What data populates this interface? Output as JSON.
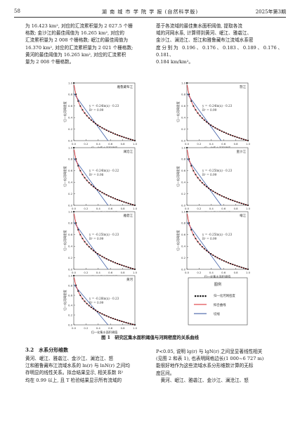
{
  "header": {
    "page_number": "58",
    "journal_title": "湖 南 城 市 学 院 学 报 (自然科学版)",
    "issue": "2025年第3期"
  },
  "left_top_paragraph": [
    "为 16.423 km², 对应的汇流累积量为 2 027.5 个栅",
    "格数; 金沙江的最佳阈值为 16.265 km², 对应的",
    "汇流累积量为 2 008 个栅格数; 岷江的最佳阈值为",
    "16.370 km², 对应的汇流累积量为 2 021 个栅格数;",
    "黄河的最佳阈值为 16.265 km², 对应的汇流累积",
    "量为 2 008 个栅格数。"
  ],
  "right_top_paragraph": [
    "基于各流域的最佳集水面积阈值, 提取各流",
    "域的河网水系, 计算得到黄河、岷江、雅砻江、",
    "金沙江、澜沧江、怒江和雅鲁藏布江流域水系密",
    "度分别为 0.196、0.176、0.183、0.189、0.176、0.181、",
    "0.184 km/km²。"
  ],
  "figure": {
    "caption": "图 1　研究区集水面积阈值与河网密度的关系曲线",
    "ylabel": "归一化河网密度",
    "xlabel": "归一化集水面积阈值",
    "legend": {
      "title": "图例",
      "items": [
        "归一化河网密度",
        "拟合曲线",
        "切线"
      ]
    }
  },
  "chart_data": [
    {
      "type": "line",
      "title": "雅鲁藏布江",
      "equation": "y = -0.24ln(x) - 0.23",
      "r2": "R² = 0.99",
      "x_ticks": [
        "0.0",
        "0.2",
        "0.4",
        "0.6",
        "0.8",
        "1.0"
      ],
      "y_ticks": [
        "0.0",
        "0.2",
        "0.4",
        "0.6",
        "0.8",
        "1.0"
      ],
      "series": [
        {
          "name": "归一化河网密度",
          "x": [
            0.0,
            0.02,
            0.05,
            0.1,
            0.15,
            0.2,
            0.3,
            0.4,
            0.5,
            0.6,
            0.7,
            0.8,
            0.9,
            1.0
          ],
          "y": [
            1.0,
            0.82,
            0.62,
            0.48,
            0.38,
            0.31,
            0.21,
            0.15,
            0.1,
            0.07,
            0.05,
            0.03,
            0.01,
            0.0
          ]
        }
      ]
    },
    {
      "type": "line",
      "title": "怒江",
      "equation": "y = -0.24ln(x) - 0.23",
      "r2": "R² = 0.99",
      "x_ticks": [
        "0.0",
        "0.2",
        "0.4",
        "0.6",
        "0.8",
        "1.0"
      ],
      "y_ticks": [
        "0.0",
        "0.2",
        "0.4",
        "0.6",
        "0.8",
        "1.0"
      ],
      "series": [
        {
          "name": "归一化河网密度",
          "x": [
            0.0,
            0.02,
            0.05,
            0.1,
            0.15,
            0.2,
            0.3,
            0.4,
            0.5,
            0.6,
            0.7,
            0.8,
            0.9,
            1.0
          ],
          "y": [
            1.0,
            0.82,
            0.62,
            0.48,
            0.38,
            0.31,
            0.21,
            0.15,
            0.1,
            0.07,
            0.05,
            0.03,
            0.01,
            0.0
          ]
        }
      ]
    },
    {
      "type": "line",
      "title": "澜沧江",
      "equation": "y = -0.24ln(x) - 0.22",
      "r2": "R² = 0.98",
      "x_ticks": [
        "0.0",
        "0.2",
        "0.4",
        "0.6",
        "0.8",
        "1.0"
      ],
      "y_ticks": [
        "0.0",
        "0.2",
        "0.4",
        "0.6",
        "0.8",
        "1.0"
      ],
      "series": [
        {
          "name": "归一化河网密度",
          "x": [
            0.0,
            0.02,
            0.05,
            0.1,
            0.15,
            0.2,
            0.3,
            0.4,
            0.5,
            0.6,
            0.7,
            0.8,
            0.9,
            1.0
          ],
          "y": [
            1.0,
            0.84,
            0.65,
            0.5,
            0.4,
            0.33,
            0.22,
            0.15,
            0.1,
            0.07,
            0.05,
            0.03,
            0.01,
            0.0
          ]
        }
      ]
    },
    {
      "type": "line",
      "title": "金沙江",
      "equation": "y = -0.25ln(x) - 0.23",
      "r2": "R² = 0.99",
      "x_ticks": [
        "0.0",
        "0.2",
        "0.4",
        "0.6",
        "0.8",
        "1.0"
      ],
      "y_ticks": [
        "0.0",
        "0.2",
        "0.4",
        "0.6",
        "0.8",
        "1.0"
      ],
      "series": [
        {
          "name": "归一化河网密度",
          "x": [
            0.0,
            0.02,
            0.05,
            0.1,
            0.15,
            0.2,
            0.3,
            0.4,
            0.5,
            0.6,
            0.7,
            0.8,
            0.9,
            1.0
          ],
          "y": [
            1.0,
            0.83,
            0.63,
            0.49,
            0.39,
            0.32,
            0.22,
            0.15,
            0.1,
            0.07,
            0.05,
            0.03,
            0.01,
            0.0
          ]
        }
      ]
    },
    {
      "type": "line",
      "title": "雅砻江",
      "equation": "y = -0.25ln(x) - 0.23",
      "r2": "R² = 0.99",
      "x_ticks": [
        "0.0",
        "0.2",
        "0.4",
        "0.6",
        "0.8",
        "1.0"
      ],
      "y_ticks": [
        "0.0",
        "0.2",
        "0.4",
        "0.6",
        "0.8",
        "1.0"
      ],
      "series": [
        {
          "name": "归一化河网密度",
          "x": [
            0.0,
            0.02,
            0.05,
            0.1,
            0.15,
            0.2,
            0.3,
            0.4,
            0.5,
            0.6,
            0.7,
            0.8,
            0.9,
            1.0
          ],
          "y": [
            1.0,
            0.83,
            0.63,
            0.49,
            0.39,
            0.32,
            0.22,
            0.15,
            0.1,
            0.07,
            0.05,
            0.03,
            0.01,
            0.0
          ]
        }
      ]
    },
    {
      "type": "line",
      "title": "岷江",
      "equation": "y = -0.25ln(x) - 0.23",
      "r2": "R² = 0.99",
      "x_ticks": [
        "0.0",
        "0.2",
        "0.4",
        "0.6",
        "0.8",
        "1.0"
      ],
      "y_ticks": [
        "0.0",
        "0.2",
        "0.4",
        "0.6",
        "0.8",
        "1.0"
      ],
      "series": [
        {
          "name": "归一化河网密度",
          "x": [
            0.0,
            0.02,
            0.05,
            0.1,
            0.15,
            0.2,
            0.3,
            0.4,
            0.5,
            0.6,
            0.7,
            0.8,
            0.9,
            1.0
          ],
          "y": [
            1.0,
            0.83,
            0.63,
            0.49,
            0.39,
            0.32,
            0.22,
            0.15,
            0.1,
            0.07,
            0.05,
            0.03,
            0.01,
            0.0
          ]
        }
      ]
    },
    {
      "type": "line",
      "title": "黄河",
      "equation": "y = -0.28ln(x) - 0.23",
      "r2": "R² = 0.99",
      "x_ticks": [
        "0.0",
        "0.2",
        "0.4",
        "0.6",
        "0.8",
        "1.0"
      ],
      "y_ticks": [
        "0.0",
        "0.2",
        "0.4",
        "0.6",
        "0.8",
        "1.0"
      ],
      "series": [
        {
          "name": "归一化河网密度",
          "x": [
            0.0,
            0.02,
            0.05,
            0.1,
            0.15,
            0.2,
            0.3,
            0.4,
            0.5,
            0.6,
            0.7,
            0.8,
            0.9,
            1.0
          ],
          "y": [
            1.0,
            0.86,
            0.66,
            0.51,
            0.41,
            0.34,
            0.23,
            0.16,
            0.11,
            0.07,
            0.05,
            0.03,
            0.01,
            0.0
          ]
        }
      ]
    }
  ],
  "section_heading": "3.2　水系分形维数",
  "left_bottom_paragraph": [
    "黄河、岷江、雅砻江、金沙江、澜沧江、怒",
    "江和雅鲁藏布江流域水系的 ln(r) 与 lnN(r) 之间均",
    "存明显的线性关系。拟合结果显示, 相关系数 R²",
    "均在 0.99 以上, 且 T 检验结果显示所有流域的"
  ],
  "right_bottom_paragraph": [
    "P<0.05, 说明 lg(r) 与 lgN(r) 之间呈显著线性相关",
    "(见图 2 和表 1), 也表明网格边长(1 000~6 727 m)",
    "能很好地作为这些流域水系分形维数计算的无标",
    "度区间。",
    "　黄河、岷江、雅砻江、金沙江、澜沧江、怒"
  ]
}
